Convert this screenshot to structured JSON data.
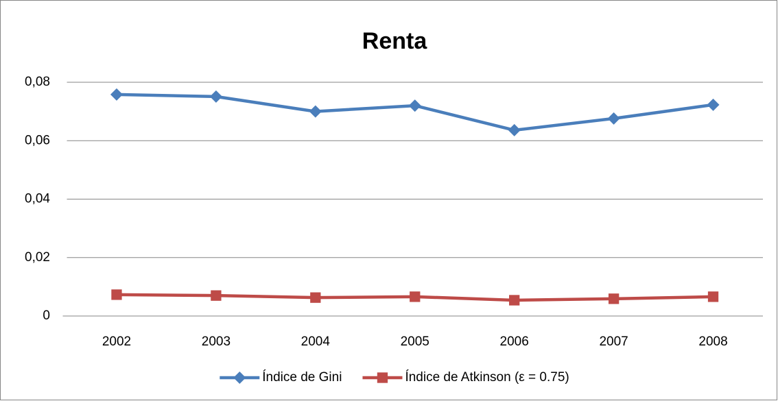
{
  "chart_data": {
    "type": "line",
    "title": "Renta",
    "categories": [
      "2002",
      "2003",
      "2004",
      "2005",
      "2006",
      "2007",
      "2008"
    ],
    "series": [
      {
        "name": "Índice de Gini",
        "color": "#4a7ebb",
        "marker": "diamond",
        "values": [
          0.0758,
          0.0751,
          0.07,
          0.072,
          0.0636,
          0.0676,
          0.0723
        ]
      },
      {
        "name": "Índice de Atkinson (ε = 0.75)",
        "color": "#be4b48",
        "marker": "square",
        "values": [
          0.0073,
          0.007,
          0.0063,
          0.0066,
          0.0054,
          0.0059,
          0.0066
        ]
      }
    ],
    "ylim": [
      0,
      0.08
    ],
    "yticks": [
      0,
      {
        "value": 0.02,
        "label": "0,02"
      },
      {
        "value": 0.04,
        "label": "0,04"
      },
      {
        "value": 0.06,
        "label": "0,06"
      },
      {
        "value": 0.08,
        "label": "0,08"
      }
    ],
    "grid": true,
    "legend": "bottom"
  }
}
